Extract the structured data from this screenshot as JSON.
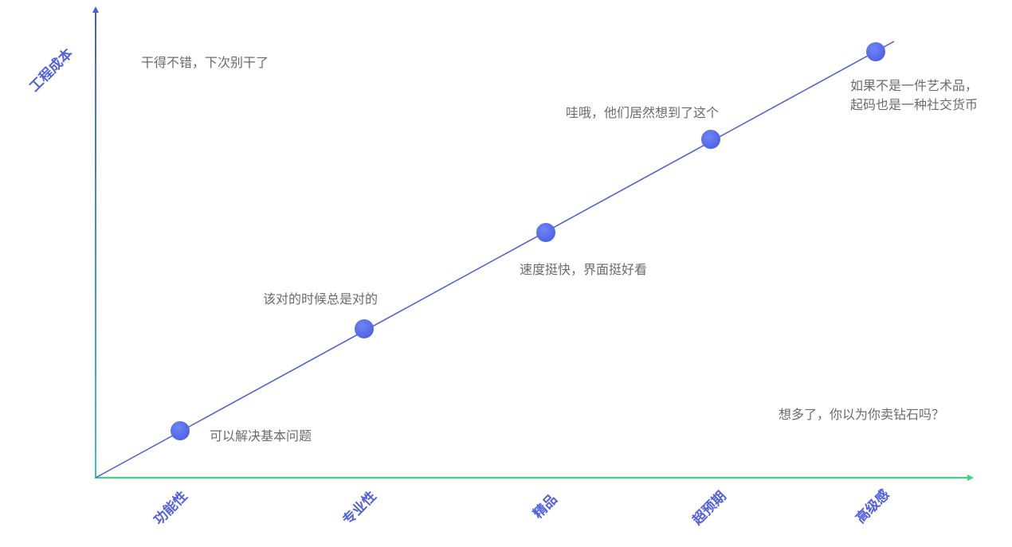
{
  "y_axis": {
    "label": "工程成本"
  },
  "x_axis": {
    "categories": [
      "功能性",
      "专业性",
      "精品",
      "超预期",
      "高级感"
    ]
  },
  "annotations": [
    {
      "lines": [
        "干得不错，下次别干了"
      ]
    },
    {
      "lines": [
        "可以解决基本问题"
      ]
    },
    {
      "lines": [
        "该对的时候总是对的"
      ]
    },
    {
      "lines": [
        "速度挺快，界面挺好看"
      ]
    },
    {
      "lines": [
        "哇哦，他们居然想到了这个"
      ]
    },
    {
      "lines": [
        "如果不是一件艺术品，",
        "起码也是一种社交货币"
      ]
    },
    {
      "lines": [
        "想多了，你以为你卖钻石吗？"
      ]
    }
  ]
}
